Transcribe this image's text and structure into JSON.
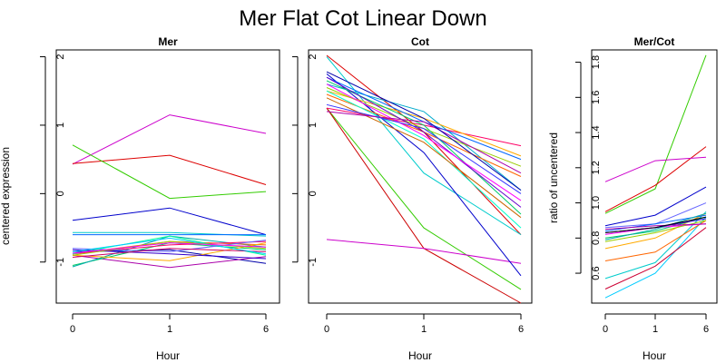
{
  "title": "Mer Flat Cot Linear Down",
  "chart_data": [
    {
      "type": "line",
      "title": "Mer",
      "xlabel": "Hour",
      "ylabel": "centered expression",
      "categories": [
        "0",
        "1",
        "6"
      ],
      "x_ticks": [
        "0",
        "1",
        "6"
      ],
      "y_ticks": [
        "-1",
        "0",
        "1",
        "2"
      ],
      "ylim": [
        -1.6,
        2.1
      ],
      "grid": false,
      "series": [
        {
          "color": "#cc00cc",
          "values": [
            0.43,
            1.15,
            0.88
          ]
        },
        {
          "color": "#dd0000",
          "values": [
            0.44,
            0.56,
            0.13
          ]
        },
        {
          "color": "#33cc00",
          "values": [
            0.71,
            -0.07,
            0.03
          ]
        },
        {
          "color": "#0000cc",
          "values": [
            -0.39,
            -0.21,
            -0.6
          ]
        },
        {
          "color": "#00cccc",
          "values": [
            -0.57,
            -0.57,
            -0.62
          ]
        },
        {
          "color": "#0066ff",
          "values": [
            -0.6,
            -0.6,
            -0.6
          ]
        },
        {
          "color": "#0000aa",
          "values": [
            -0.85,
            -0.82,
            -1.02
          ]
        },
        {
          "color": "#aa00aa",
          "values": [
            -0.9,
            -1.08,
            -0.92
          ]
        },
        {
          "color": "#00cc66",
          "values": [
            -1.05,
            -0.72,
            -0.82
          ]
        },
        {
          "color": "#00aaaa",
          "values": [
            -1.07,
            -0.62,
            -0.78
          ]
        },
        {
          "color": "#ff6600",
          "values": [
            -0.88,
            -0.7,
            -0.75
          ]
        },
        {
          "color": "#ffaa00",
          "values": [
            -0.9,
            -0.98,
            -0.72
          ]
        },
        {
          "color": "#ff0066",
          "values": [
            -0.88,
            -0.75,
            -0.7
          ]
        },
        {
          "color": "#6666ff",
          "values": [
            -0.8,
            -0.85,
            -0.68
          ]
        },
        {
          "color": "#00ff99",
          "values": [
            -0.88,
            -0.62,
            -0.9
          ]
        },
        {
          "color": "#3300cc",
          "values": [
            -0.82,
            -0.88,
            -0.95
          ]
        },
        {
          "color": "#cc0066",
          "values": [
            -0.93,
            -0.8,
            -0.85
          ]
        },
        {
          "color": "#00ccff",
          "values": [
            -0.85,
            -0.65,
            -0.88
          ]
        },
        {
          "color": "#99cc00",
          "values": [
            -0.9,
            -0.7,
            -0.8
          ]
        },
        {
          "color": "#ff00ff",
          "values": [
            -0.87,
            -0.72,
            -0.78
          ]
        }
      ]
    },
    {
      "type": "line",
      "title": "Cot",
      "xlabel": "Hour",
      "ylabel": "",
      "categories": [
        "0",
        "1",
        "6"
      ],
      "x_ticks": [
        "0",
        "1",
        "6"
      ],
      "y_ticks": [
        "-1",
        "0",
        "1",
        "2"
      ],
      "ylim": [
        -1.6,
        2.1
      ],
      "grid": false,
      "series": [
        {
          "color": "#dd0000",
          "values": [
            2.02,
            0.9,
            -0.6
          ]
        },
        {
          "color": "#00cccc",
          "values": [
            2.0,
            0.3,
            -0.6
          ]
        },
        {
          "color": "#33cc00",
          "values": [
            1.25,
            -0.5,
            -1.4
          ]
        },
        {
          "color": "#cc0000",
          "values": [
            1.25,
            -0.8,
            -1.6
          ]
        },
        {
          "color": "#cc00cc",
          "values": [
            -0.67,
            -0.8,
            -1.02
          ]
        },
        {
          "color": "#0000cc",
          "values": [
            1.75,
            0.6,
            -1.2
          ]
        },
        {
          "color": "#00aacc",
          "values": [
            1.6,
            1.2,
            0.05
          ]
        },
        {
          "color": "#ff0066",
          "values": [
            1.25,
            1.0,
            0.7
          ]
        },
        {
          "color": "#ffaa00",
          "values": [
            1.5,
            1.1,
            0.55
          ]
        },
        {
          "color": "#0066ff",
          "values": [
            1.7,
            1.05,
            0.5
          ]
        },
        {
          "color": "#99cc00",
          "values": [
            1.55,
            0.95,
            0.4
          ]
        },
        {
          "color": "#ff6600",
          "values": [
            1.45,
            0.9,
            0.25
          ]
        },
        {
          "color": "#00cc66",
          "values": [
            1.65,
            1.0,
            -0.3
          ]
        },
        {
          "color": "#6600cc",
          "values": [
            1.7,
            0.9,
            -0.2
          ]
        },
        {
          "color": "#ff00ff",
          "values": [
            1.6,
            0.85,
            -0.1
          ]
        },
        {
          "color": "#00ffcc",
          "values": [
            1.5,
            0.8,
            -0.5
          ]
        },
        {
          "color": "#cc6600",
          "values": [
            1.4,
            0.75,
            -0.35
          ]
        },
        {
          "color": "#3333ff",
          "values": [
            1.3,
            0.95,
            0.0
          ]
        },
        {
          "color": "#aa00aa",
          "values": [
            1.2,
            1.05,
            0.3
          ]
        },
        {
          "color": "#0000aa",
          "values": [
            1.78,
            1.1,
            0.05
          ]
        }
      ]
    },
    {
      "type": "line",
      "title": "Mer/Cot",
      "xlabel": "Hour",
      "ylabel": "ratio of uncentered",
      "categories": [
        "0",
        "1",
        "6"
      ],
      "x_ticks": [
        "0",
        "1",
        "6"
      ],
      "y_ticks": [
        "0.6",
        "0.8",
        "1.0",
        "1.2",
        "1.4",
        "1.6",
        "1.8"
      ],
      "ylim": [
        0.43,
        1.87
      ],
      "grid": false,
      "series": [
        {
          "color": "#33cc00",
          "values": [
            0.94,
            1.08,
            1.84
          ]
        },
        {
          "color": "#dd0000",
          "values": [
            0.95,
            1.1,
            1.32
          ]
        },
        {
          "color": "#cc00cc",
          "values": [
            1.12,
            1.24,
            1.26
          ]
        },
        {
          "color": "#0000cc",
          "values": [
            0.87,
            0.93,
            1.09
          ]
        },
        {
          "color": "#6666ff",
          "values": [
            0.86,
            0.88,
            1.0
          ]
        },
        {
          "color": "#00cccc",
          "values": [
            0.57,
            0.66,
            0.95
          ]
        },
        {
          "color": "#00ccff",
          "values": [
            0.46,
            0.6,
            0.92
          ]
        },
        {
          "color": "#cc0033",
          "values": [
            0.51,
            0.64,
            0.86
          ]
        },
        {
          "color": "#ff6600",
          "values": [
            0.67,
            0.72,
            0.9
          ]
        },
        {
          "color": "#ffaa00",
          "values": [
            0.74,
            0.8,
            0.94
          ]
        },
        {
          "color": "#00cc66",
          "values": [
            0.8,
            0.84,
            0.92
          ]
        },
        {
          "color": "#ff00ff",
          "values": [
            0.82,
            0.86,
            0.88
          ]
        },
        {
          "color": "#0066ff",
          "values": [
            0.84,
            0.88,
            0.93
          ]
        },
        {
          "color": "#99cc00",
          "values": [
            0.78,
            0.83,
            0.9
          ]
        },
        {
          "color": "#aa00aa",
          "values": [
            0.85,
            0.87,
            0.88
          ]
        },
        {
          "color": "#00aaaa",
          "values": [
            0.79,
            0.85,
            0.94
          ]
        },
        {
          "color": "#3300cc",
          "values": [
            0.83,
            0.86,
            0.91
          ]
        },
        {
          "color": "#000000",
          "emphasis": true,
          "values": [
            0.83,
            0.86,
            0.92
          ]
        }
      ]
    }
  ]
}
